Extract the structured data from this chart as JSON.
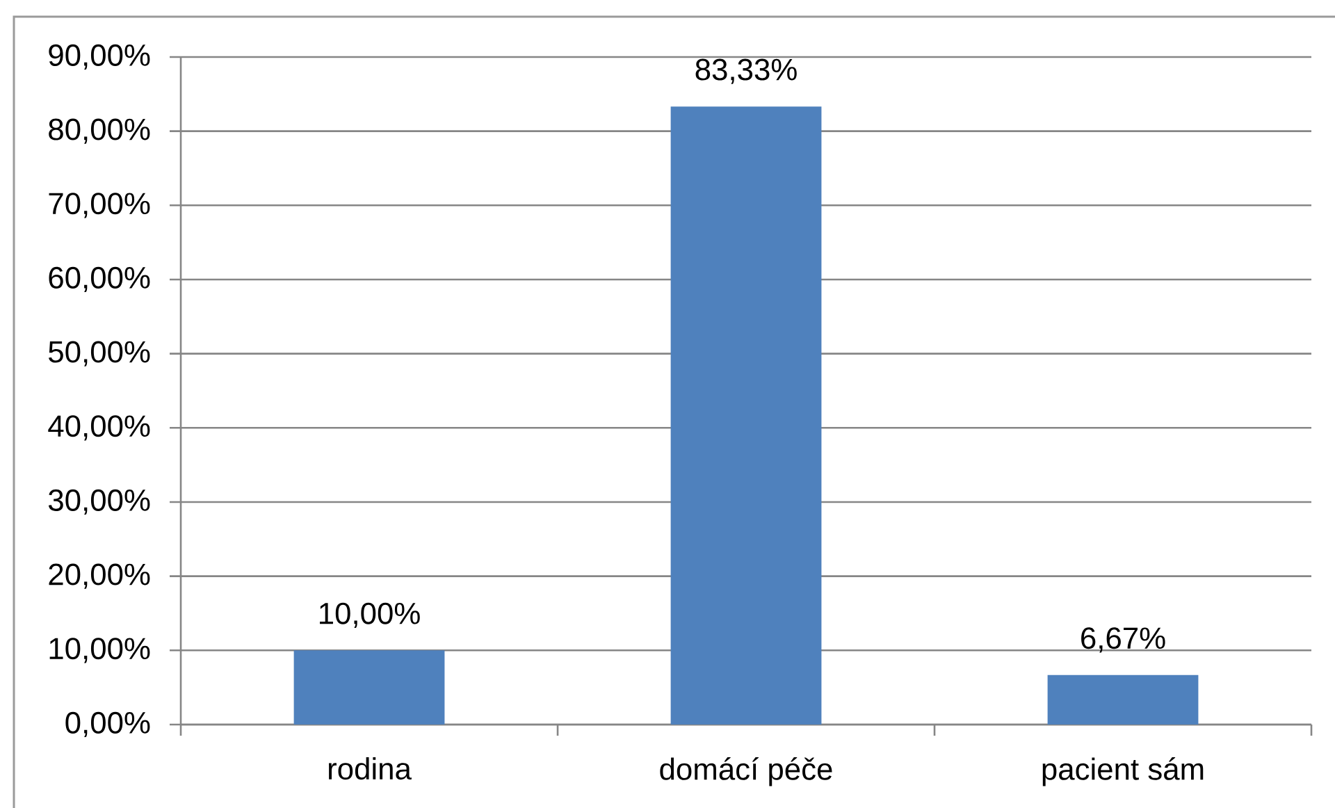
{
  "chart_data": {
    "type": "bar",
    "categories": [
      "rodina",
      "domácí péče",
      "pacient sám"
    ],
    "values": [
      10,
      83.33,
      6.67
    ],
    "color": "#4f81bd",
    "value_labels": [
      "10,00%",
      "83,33%",
      "6,67%"
    ],
    "ylim": [
      0,
      90
    ],
    "yticks": [
      {
        "value": 0,
        "label": "0,00%"
      },
      {
        "value": 10,
        "label": "10,00%"
      },
      {
        "value": 20,
        "label": "20,00%"
      },
      {
        "value": 30,
        "label": "30,00%"
      },
      {
        "value": 40,
        "label": "40,00%"
      },
      {
        "value": 50,
        "label": "50,00%"
      },
      {
        "value": 60,
        "label": "60,00%"
      },
      {
        "value": 70,
        "label": "70,00%"
      },
      {
        "value": 80,
        "label": "80,00%"
      },
      {
        "value": 90,
        "label": "90,00%"
      }
    ],
    "grid": "y"
  }
}
